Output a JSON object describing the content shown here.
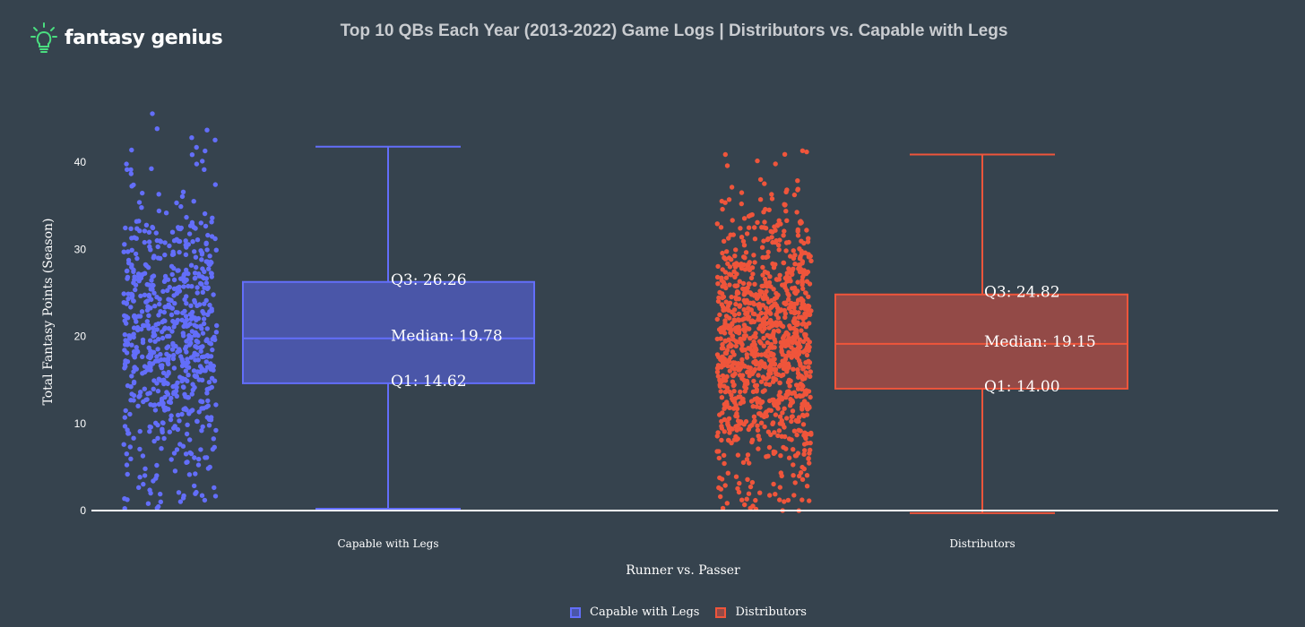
{
  "brand": {
    "name": "fantasy genius",
    "icon": "lightbulb-icon",
    "icon_color": "#4ade80"
  },
  "chart_data": {
    "type": "box",
    "title": "Top 10 QBs Each Year (2013-2022) Game Logs | Distributors vs. Capable with Legs",
    "xlabel": "Runner vs. Passer",
    "ylabel": "Total Fantasy Points (Season)",
    "ylim": [
      0,
      46
    ],
    "yticks": [
      0,
      10,
      20,
      30,
      40
    ],
    "grid": false,
    "legend_position": "bottom-center",
    "categories": [
      "Capable with Legs",
      "Distributors"
    ],
    "series": [
      {
        "name": "Capable with Legs",
        "color": "#636efa",
        "fill": "#4a56a8",
        "min": 0.2,
        "q1": 14.62,
        "median": 19.78,
        "q3": 26.26,
        "max": 41.8,
        "annotations": {
          "q3": "Q3: 26.26",
          "median": "Median: 19.78",
          "q1": "Q1: 14.62"
        }
      },
      {
        "name": "Distributors",
        "color": "#ef553b",
        "fill": "#934a47",
        "min": -0.3,
        "q1": 14.0,
        "median": 19.15,
        "q3": 24.82,
        "max": 40.9,
        "annotations": {
          "q3": "Q3: 24.82",
          "median": "Median: 19.15",
          "q1": "Q1: 14.00"
        }
      }
    ]
  }
}
